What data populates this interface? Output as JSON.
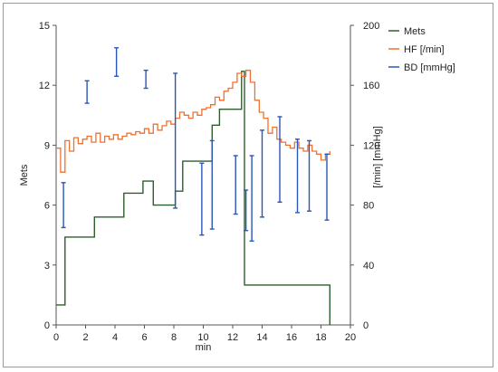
{
  "chart_data": {
    "type": "line",
    "xlabel": "min",
    "ylabel_left": "Mets",
    "ylabel_right": "[/min]  [mmHg]",
    "xlim": [
      0,
      20
    ],
    "ylim_left": [
      0,
      15
    ],
    "ylim_right": [
      0,
      200
    ],
    "x_ticks": [
      0,
      2,
      4,
      6,
      8,
      10,
      12,
      14,
      16,
      18,
      20
    ],
    "y_left_ticks": [
      0,
      3,
      6,
      9,
      12,
      15
    ],
    "y_right_ticks": [
      0,
      40,
      80,
      120,
      160,
      200
    ],
    "grid": false,
    "legend_position": "top-right",
    "legend": [
      "Mets",
      "HF [/min]",
      "BD [mmHg]"
    ],
    "colors": {
      "mets": "#2e5e2e",
      "hf": "#f07030",
      "bd": "#2a56b8",
      "axis": "#555555"
    },
    "mets_step": {
      "name": "Mets",
      "x": [
        0,
        0.6,
        0.6,
        2.6,
        2.6,
        4.6,
        4.6,
        5.9,
        5.9,
        6.6,
        6.6,
        8.1,
        8.1,
        8.6,
        8.6,
        10.6,
        10.6,
        11.1,
        11.1,
        12.6,
        12.6,
        12.8,
        12.8,
        18.6,
        18.6
      ],
      "y": [
        1.0,
        1.0,
        4.4,
        4.4,
        5.4,
        5.4,
        6.6,
        6.6,
        7.2,
        7.2,
        6.0,
        6.0,
        6.7,
        6.7,
        8.2,
        8.2,
        10.0,
        10.0,
        10.8,
        10.8,
        12.7,
        12.7,
        2.0,
        2.0,
        0
      ]
    },
    "hf_step": {
      "name": "HF [/min]",
      "x": [
        0.0,
        0.3,
        0.6,
        0.9,
        1.2,
        1.5,
        1.8,
        2.1,
        2.4,
        2.7,
        3.0,
        3.3,
        3.6,
        3.9,
        4.2,
        4.5,
        4.8,
        5.1,
        5.4,
        5.7,
        6.0,
        6.3,
        6.6,
        6.9,
        7.2,
        7.5,
        7.8,
        8.1,
        8.4,
        8.7,
        9.0,
        9.3,
        9.6,
        9.9,
        10.2,
        10.5,
        10.8,
        11.1,
        11.4,
        11.7,
        12.0,
        12.3,
        12.6,
        12.9,
        13.2,
        13.5,
        13.8,
        14.1,
        14.4,
        14.7,
        15.0,
        15.3,
        15.6,
        15.9,
        16.2,
        16.5,
        16.8,
        17.1,
        17.4,
        17.7,
        18.0,
        18.3,
        18.6
      ],
      "y": [
        118,
        102,
        123,
        116,
        125,
        121,
        124,
        126,
        122,
        128,
        122,
        126,
        124,
        127,
        124,
        126,
        128,
        127,
        129,
        128,
        131,
        128,
        134,
        130,
        133,
        136,
        134,
        138,
        142,
        140,
        138,
        142,
        140,
        144,
        145,
        147,
        152,
        150,
        156,
        158,
        162,
        168,
        166,
        170,
        162,
        150,
        142,
        138,
        128,
        132,
        124,
        122,
        120,
        118,
        122,
        118,
        116,
        120,
        116,
        114,
        110,
        114,
        116
      ]
    },
    "bd_bars": {
      "name": "BD [mmHg]",
      "x": [
        0.5,
        2.1,
        4.1,
        6.1,
        8.1,
        9.9,
        10.6,
        12.2,
        12.9,
        13.3,
        14.0,
        15.2,
        16.4,
        17.2,
        18.4
      ],
      "low": [
        65,
        148,
        166,
        158,
        78,
        60,
        64,
        74,
        63,
        56,
        72,
        82,
        75,
        76,
        70
      ],
      "high": [
        95,
        163,
        185,
        170,
        168,
        108,
        123,
        113,
        90,
        113,
        130,
        139,
        124,
        123,
        114
      ]
    }
  }
}
